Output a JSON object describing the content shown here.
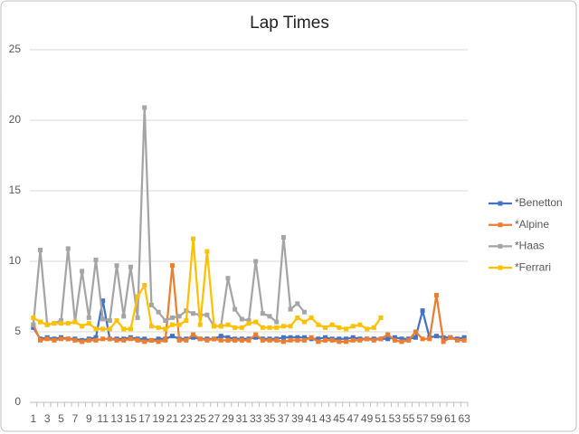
{
  "chart_data": {
    "type": "line",
    "title": "Lap Times",
    "categories": [
      "1",
      null,
      "3",
      null,
      "5",
      null,
      "7",
      null,
      "9",
      null,
      "11",
      null,
      "13",
      null,
      "15",
      null,
      "17",
      null,
      "19",
      null,
      "21",
      null,
      "23",
      null,
      "25",
      null,
      "27",
      null,
      "29",
      null,
      "31",
      null,
      "33",
      null,
      "35",
      null,
      "37",
      null,
      "39",
      null,
      "41",
      null,
      "43",
      null,
      "45",
      null,
      "47",
      null,
      "49",
      null,
      "51",
      null,
      "53",
      null,
      "55",
      null,
      "57",
      null,
      "59",
      null,
      "61",
      null,
      "63"
    ],
    "series": [
      {
        "name": "*Benetton",
        "color": "#4472c4",
        "values": [
          5.3,
          4.5,
          4.6,
          4.5,
          4.6,
          4.5,
          4.5,
          4.4,
          4.5,
          4.6,
          7.2,
          4.5,
          4.5,
          4.5,
          4.6,
          4.5,
          4.5,
          4.4,
          4.5,
          4.5,
          4.7,
          4.5,
          4.5,
          4.6,
          4.5,
          4.5,
          4.5,
          4.7,
          4.6,
          4.5,
          4.5,
          4.5,
          4.6,
          4.5,
          4.5,
          4.5,
          4.6,
          4.6,
          4.6,
          4.6,
          4.5,
          4.5,
          4.6,
          4.5,
          4.5,
          4.5,
          4.6,
          4.5,
          4.5,
          4.5,
          4.5,
          4.5,
          4.6,
          4.5,
          4.5,
          4.6,
          6.5,
          4.6,
          4.7,
          4.6,
          4.6,
          4.5,
          4.6
        ]
      },
      {
        "name": "*Alpine",
        "color": "#ed7d31",
        "values": [
          5.5,
          4.4,
          4.5,
          4.4,
          4.5,
          4.5,
          4.4,
          4.3,
          4.4,
          4.4,
          4.5,
          4.5,
          4.4,
          4.4,
          4.5,
          4.4,
          4.3,
          4.4,
          4.3,
          4.4,
          9.7,
          4.4,
          4.4,
          4.8,
          4.5,
          4.4,
          4.5,
          4.4,
          4.4,
          4.4,
          4.4,
          4.4,
          4.8,
          4.4,
          4.4,
          4.4,
          4.3,
          4.4,
          4.4,
          4.4,
          4.6,
          4.3,
          4.4,
          4.4,
          4.3,
          4.3,
          4.4,
          4.4,
          4.5,
          4.4,
          4.5,
          4.8,
          4.4,
          4.3,
          4.4,
          5.0,
          4.5,
          4.5,
          7.6,
          4.3,
          4.6,
          4.4,
          4.4
        ]
      },
      {
        "name": "*Haas",
        "color": "#a5a5a5",
        "values": [
          5.5,
          10.8,
          5.5,
          5.6,
          5.8,
          10.9,
          5.7,
          9.3,
          6.0,
          10.1,
          5.9,
          5.8,
          9.7,
          6.1,
          9.6,
          6.0,
          20.9,
          6.9,
          6.4,
          5.8,
          6.0,
          6.1,
          6.5,
          6.3,
          6.2,
          6.2,
          5.4,
          5.4,
          8.8,
          6.6,
          5.9,
          5.8,
          10.0,
          6.3,
          6.1,
          5.7,
          11.7,
          6.6,
          7.0,
          6.4,
          null,
          null,
          null,
          null,
          null,
          null,
          null,
          null,
          null,
          null,
          null,
          null,
          null,
          null,
          null,
          null,
          null,
          null,
          null,
          null,
          null,
          null,
          null
        ]
      },
      {
        "name": "*Ferrari",
        "color": "#ffc000",
        "values": [
          6.0,
          5.7,
          5.5,
          5.6,
          5.6,
          5.6,
          5.7,
          5.4,
          5.6,
          5.2,
          5.2,
          5.2,
          5.8,
          5.2,
          5.2,
          7.5,
          8.3,
          5.4,
          5.3,
          5.2,
          5.5,
          5.5,
          5.8,
          11.6,
          5.5,
          10.7,
          5.4,
          5.4,
          5.5,
          5.3,
          5.3,
          5.6,
          5.7,
          5.3,
          5.3,
          5.3,
          5.4,
          5.4,
          6.0,
          5.7,
          6.0,
          5.5,
          5.3,
          5.5,
          5.3,
          5.2,
          5.4,
          5.5,
          5.2,
          5.3,
          6.0,
          null,
          null,
          null,
          null,
          null,
          null,
          null,
          null,
          null,
          null,
          null,
          null
        ]
      }
    ],
    "ylim": [
      0,
      25
    ],
    "yticks": [
      0,
      5,
      10,
      15,
      20,
      25
    ],
    "grid": true,
    "legend": "right"
  }
}
